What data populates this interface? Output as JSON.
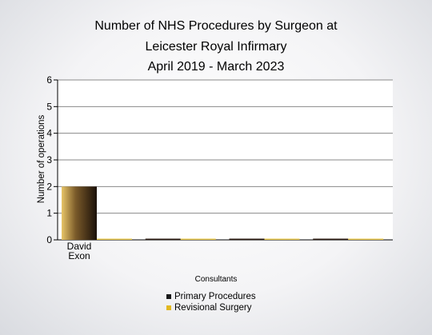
{
  "chart_data": {
    "type": "bar",
    "title_lines": [
      "Number of NHS Procedures by Surgeon at",
      "Leicester Royal Infirmary",
      "April 2019 - March 2023"
    ],
    "xlabel": "Consultants",
    "ylabel": "Number of operations",
    "ylim": [
      0,
      6
    ],
    "yticks": [
      "0",
      "1",
      "2",
      "3",
      "4",
      "5",
      "6"
    ],
    "categories": [
      [
        "David",
        "Exon"
      ],
      [
        ""
      ],
      [
        ""
      ],
      [
        ""
      ]
    ],
    "series": [
      {
        "name": "Primary Procedures",
        "values": [
          2,
          0,
          0,
          0
        ],
        "color": "#2a1a10"
      },
      {
        "name": "Revisional Surgery",
        "values": [
          0,
          0,
          0,
          0
        ],
        "color": "#e2c24a"
      }
    ],
    "grid": true,
    "legend_position": "bottom-center"
  }
}
